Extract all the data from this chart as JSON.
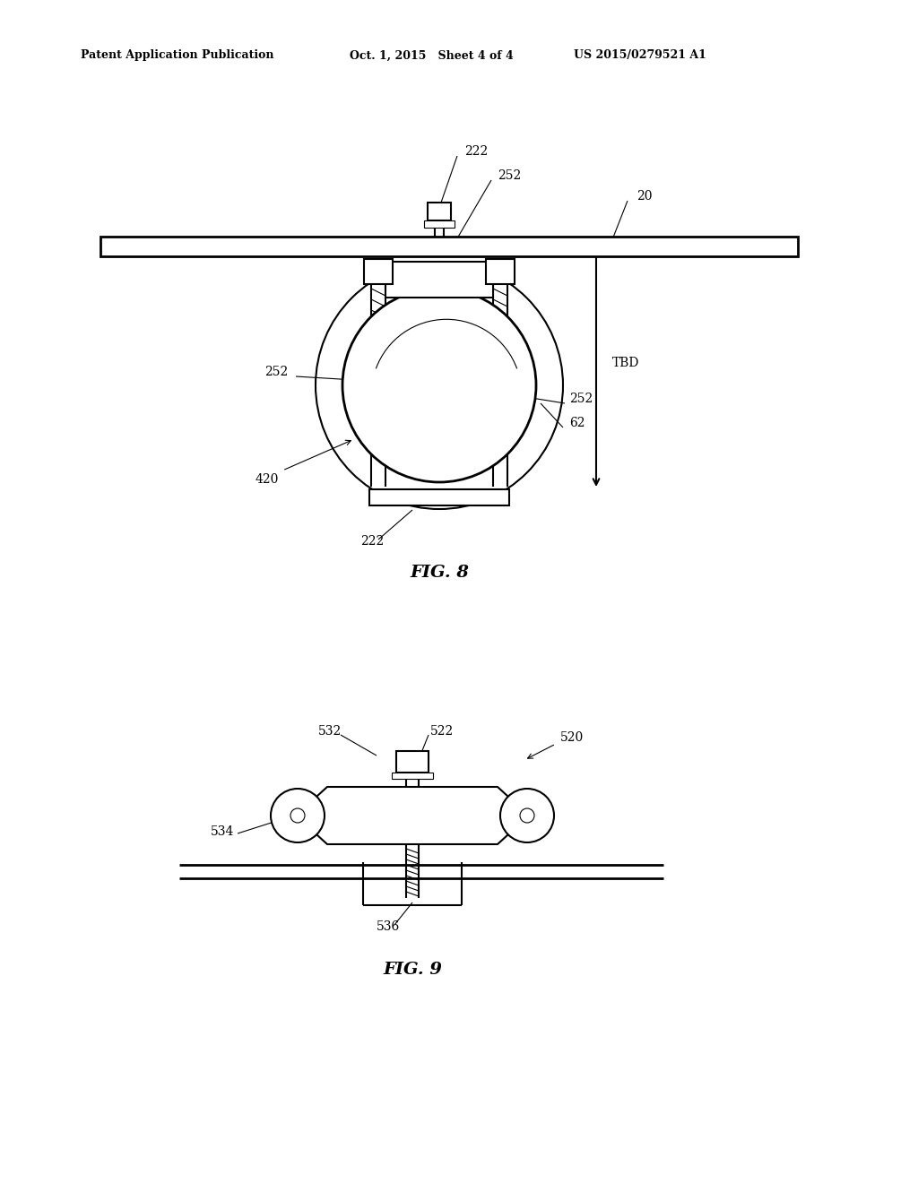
{
  "background_color": "#ffffff",
  "header_left": "Patent Application Publication",
  "header_middle": "Oct. 1, 2015   Sheet 4 of 4",
  "header_right": "US 2015/0279521 A1",
  "line_color": "#000000",
  "line_width": 1.5,
  "thin_line": 0.8,
  "fig8_label": "FIG. 8",
  "fig9_label": "FIG. 9"
}
